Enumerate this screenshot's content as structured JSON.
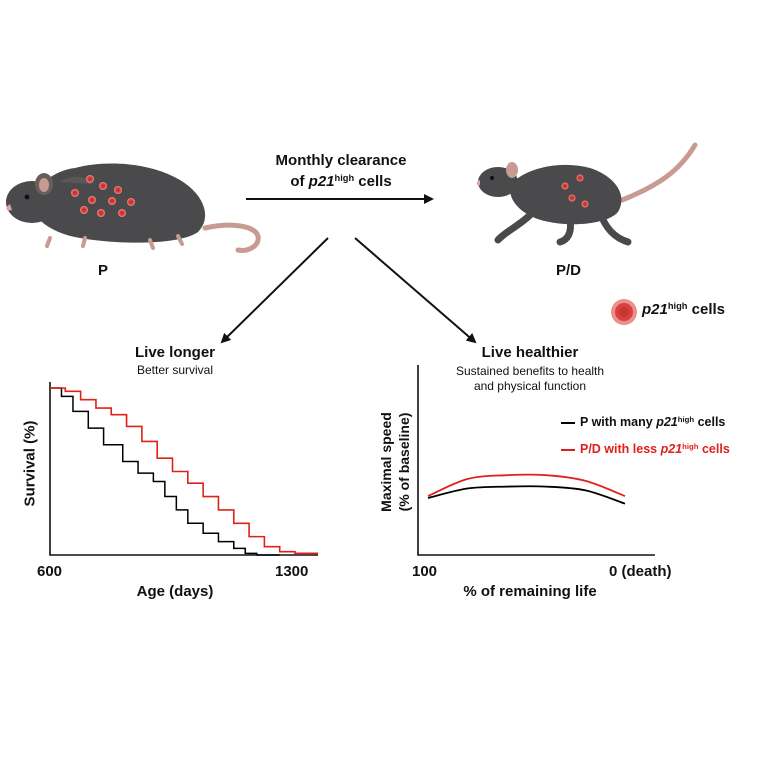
{
  "header": {
    "arrow_label_line1": "Monthly clearance",
    "arrow_label_line2_prefix": "of ",
    "arrow_label_line2_gene": "p21",
    "arrow_label_line2_sup": "high",
    "arrow_label_line2_suffix": " cells"
  },
  "mice": {
    "left_label": "P",
    "right_label": "P/D"
  },
  "legend_cells": {
    "gene": "p21",
    "sup": "high",
    "suffix": " cells"
  },
  "left_panel": {
    "title": "Live longer",
    "subtitle": "Better survival",
    "ylabel": "Survival (%)",
    "xlabel": "Age (days)",
    "x_tick_left": "600",
    "x_tick_right": "1300"
  },
  "right_panel": {
    "title": "Live healthier",
    "subtitle_line1": "Sustained benefits to health",
    "subtitle_line2": "and physical function",
    "ylabel_line1": "Maximal speed",
    "ylabel_line2": "(% of baseline)",
    "xlabel": "% of remaining life",
    "x_tick_left": "100",
    "x_tick_right": "0 (death)",
    "legend": [
      {
        "prefix": "P with many ",
        "gene": "p21",
        "sup": "high",
        "suffix": " cells",
        "color": "#000000"
      },
      {
        "prefix": "P/D with less ",
        "gene": "p21",
        "sup": "high",
        "suffix": " cells",
        "color": "#e0201b"
      }
    ]
  },
  "colors": {
    "control": "#000000",
    "treated": "#e0201b",
    "mouse_body": "#4a4a4c",
    "mouse_tail": "#c79a92",
    "cell_fill": "#d9413c"
  },
  "chart_data": [
    {
      "type": "line",
      "title": "Live longer",
      "subtitle": "Better survival",
      "xlabel": "Age (days)",
      "ylabel": "Survival (%)",
      "xlim": [
        600,
        1300
      ],
      "ylim": [
        0,
        100
      ],
      "series": [
        {
          "name": "P with many p21high cells",
          "color": "#000000",
          "x": [
            600,
            630,
            660,
            700,
            740,
            790,
            830,
            870,
            900,
            930,
            960,
            1000,
            1040,
            1080,
            1110,
            1140,
            1200
          ],
          "y": [
            100,
            95,
            86,
            76,
            66,
            56,
            49,
            44,
            35,
            27,
            19,
            13,
            8,
            4,
            1,
            0,
            0
          ]
        },
        {
          "name": "P/D with less p21high cells",
          "color": "#e0201b",
          "x": [
            600,
            640,
            680,
            720,
            760,
            800,
            840,
            880,
            920,
            960,
            1000,
            1040,
            1080,
            1120,
            1160,
            1200,
            1240,
            1300
          ],
          "y": [
            100,
            98,
            93,
            88,
            84,
            77,
            68,
            58,
            50,
            43,
            35,
            27,
            19,
            11,
            5,
            2,
            1,
            1
          ]
        }
      ]
    },
    {
      "type": "line",
      "title": "Live healthier",
      "xlabel": "% of remaining life",
      "ylabel": "Maximal speed (% of baseline)",
      "xlim": [
        100,
        0
      ],
      "series": [
        {
          "name": "P with many p21high cells",
          "color": "#000000",
          "x": [
            100,
            80,
            60,
            40,
            20,
            0
          ],
          "y": [
            30,
            35,
            36,
            36,
            34,
            27
          ]
        },
        {
          "name": "P/D with less p21high cells",
          "color": "#e0201b",
          "x": [
            100,
            80,
            60,
            40,
            20,
            0
          ],
          "y": [
            31,
            40,
            42,
            42,
            39,
            31
          ]
        }
      ]
    }
  ]
}
